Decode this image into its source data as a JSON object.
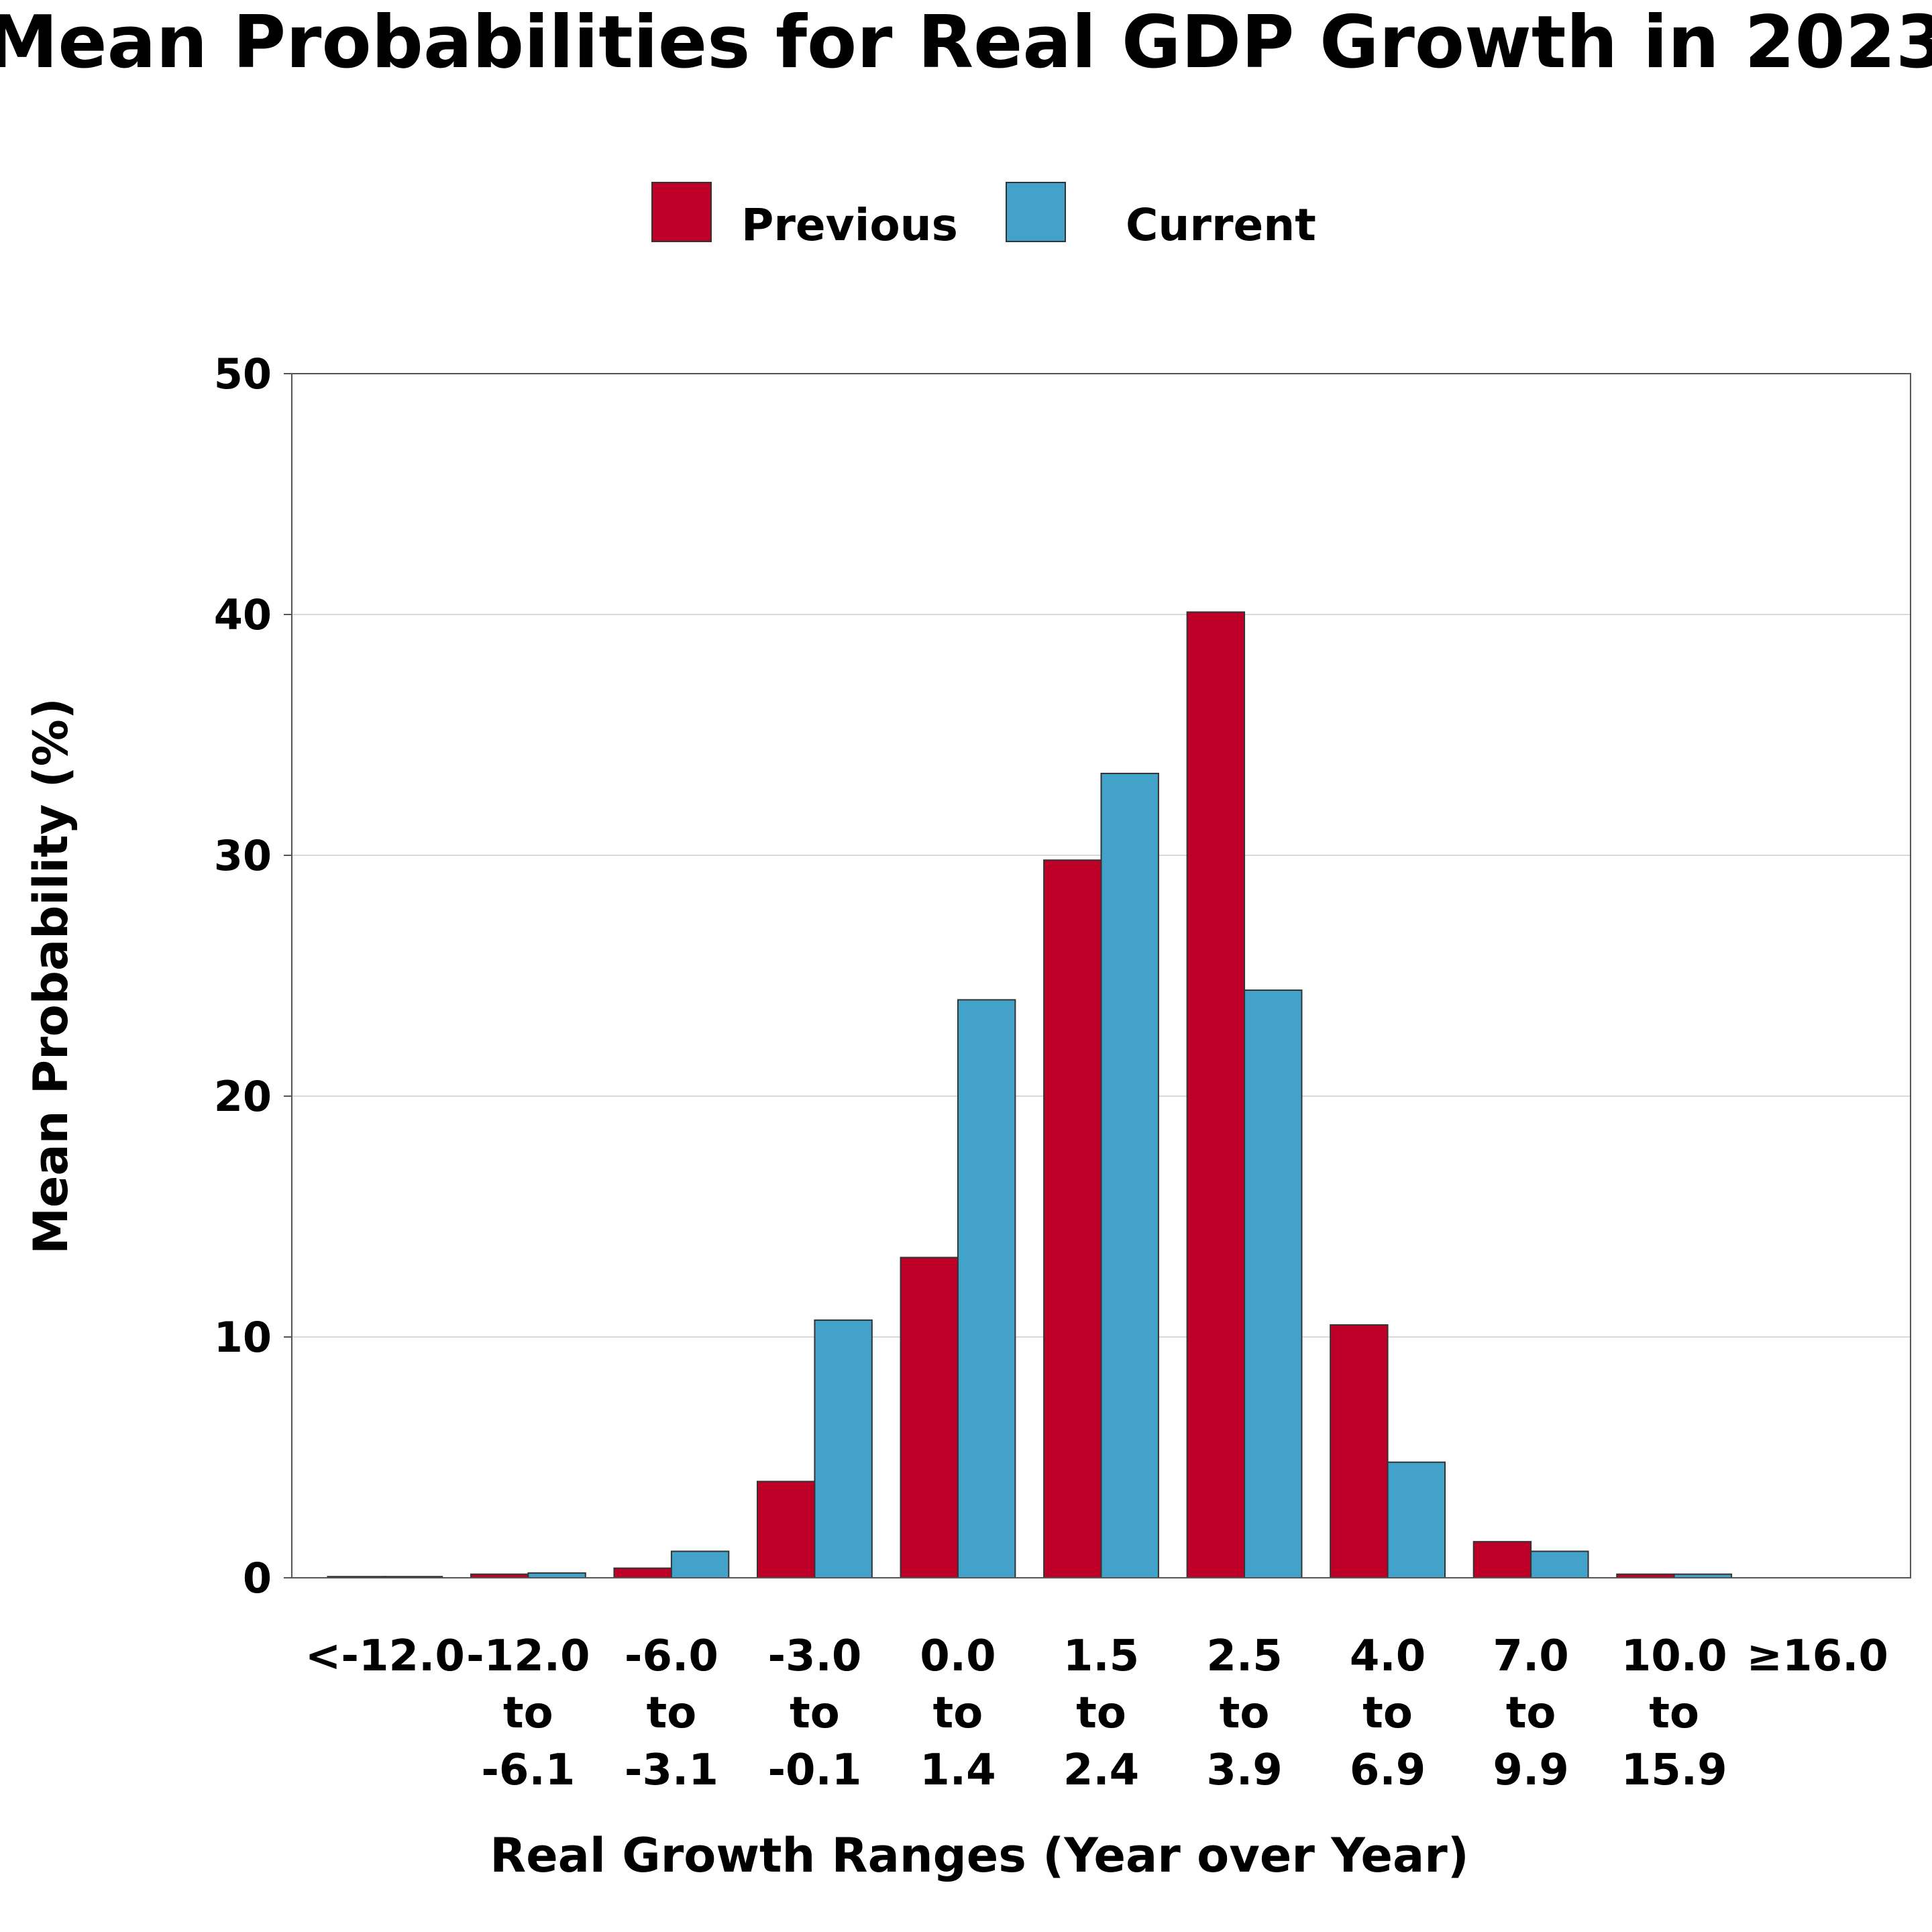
{
  "chart_data": {
    "type": "bar",
    "title": "Mean Probabilities for Real GDP Growth in 2023",
    "xlabel": "Real Growth Ranges (Year over Year)",
    "ylabel": "Mean Probability (%)",
    "ylim": [
      0,
      50
    ],
    "yticks": [
      0,
      10,
      20,
      30,
      40,
      50
    ],
    "grid": true,
    "legend_position": "top-center",
    "categories": [
      [
        "<-12.0"
      ],
      [
        "-12.0",
        "to",
        "-6.1"
      ],
      [
        "-6.0",
        "to",
        "-3.1"
      ],
      [
        "-3.0",
        "to",
        "-0.1"
      ],
      [
        "0.0",
        "to",
        "1.4"
      ],
      [
        "1.5",
        "to",
        "2.4"
      ],
      [
        "2.5",
        "to",
        "3.9"
      ],
      [
        "4.0",
        "to",
        "6.9"
      ],
      [
        "7.0",
        "to",
        "9.9"
      ],
      [
        "10.0",
        "to",
        "15.9"
      ],
      [
        "≥16.0"
      ]
    ],
    "series": [
      {
        "name": "Previous",
        "color": "#be0028",
        "values": [
          0.05,
          0.15,
          0.4,
          4.0,
          13.3,
          29.8,
          40.1,
          10.5,
          1.5,
          0.15,
          0.0
        ]
      },
      {
        "name": "Current",
        "color": "#43a2ca",
        "values": [
          0.05,
          0.2,
          1.1,
          10.7,
          24.0,
          33.4,
          24.4,
          4.8,
          1.1,
          0.15,
          0.0
        ]
      }
    ]
  }
}
